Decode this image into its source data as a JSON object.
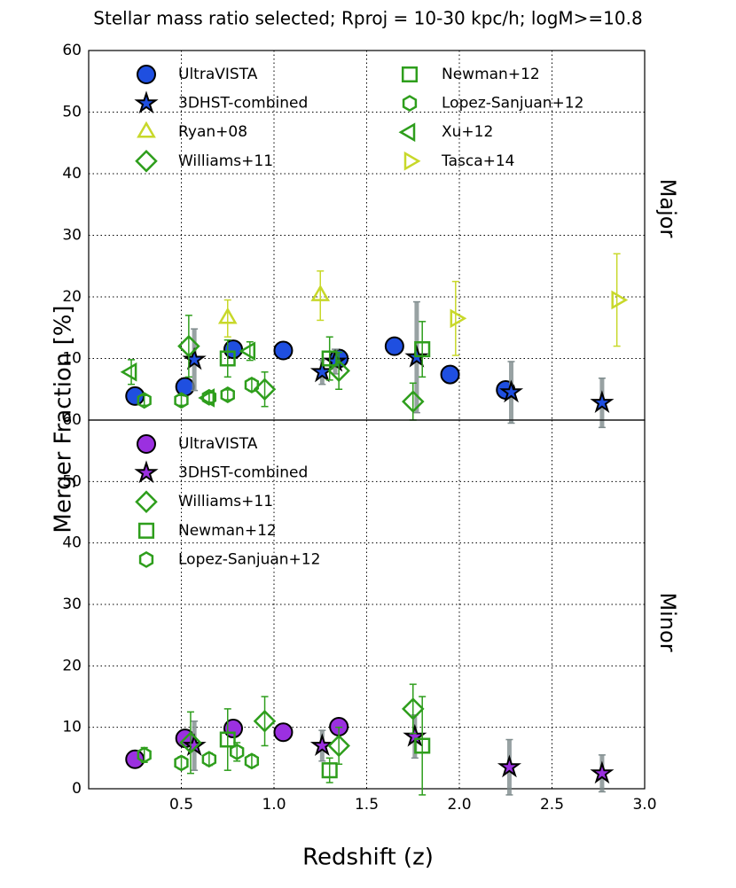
{
  "chart_data": [
    {
      "type": "scatter",
      "title": "Stellar mass ratio selected; Rproj = 10-30 kpc/h; logM>=10.8",
      "ylabel": "Merger Fraction [%]",
      "panel_label": "Major",
      "xlim": [
        0,
        3.0
      ],
      "xticks": [
        {
          "value": 0.5,
          "label": "0.5"
        },
        {
          "value": 1.0,
          "label": "1.0"
        },
        {
          "value": 1.5,
          "label": "1.5"
        },
        {
          "value": 2.0,
          "label": "2.0"
        },
        {
          "value": 2.5,
          "label": "2.5"
        },
        {
          "value": 3.0,
          "label": "3.0"
        }
      ],
      "ylim": [
        0,
        60
      ],
      "yticks": [
        10,
        20,
        30,
        40,
        50,
        60
      ],
      "grid": true,
      "legend_columns": 2,
      "series": [
        {
          "name": "UltraVISTA",
          "color": "#1f4fe0",
          "marker": "circle",
          "filled": true,
          "x": [
            0.25,
            0.52,
            0.78,
            1.05,
            1.35,
            1.65,
            1.95,
            2.25
          ],
          "values": [
            3.9,
            5.4,
            11.5,
            11.3,
            10.0,
            12.0,
            7.4,
            4.9
          ]
        },
        {
          "name": "3DHST-combined",
          "color": "#1f4fe0",
          "marker": "star",
          "filled": true,
          "x": [
            0.57,
            1.26,
            1.33,
            1.77,
            2.28,
            2.77
          ],
          "values": [
            9.8,
            7.8,
            9.5,
            10.2,
            4.5,
            2.8
          ],
          "yerr": [
            5.0,
            2.0,
            2.0,
            9.0,
            5.0,
            4.0
          ]
        },
        {
          "name": "Ryan+08",
          "color": "#c8d82a",
          "marker": "triangle-up",
          "filled": false,
          "x": [
            0.75,
            1.25
          ],
          "values": [
            16.5,
            20.2
          ],
          "yerr": [
            3.0,
            4.0
          ]
        },
        {
          "name": "Williams+11",
          "color": "#2e9e1c",
          "marker": "diamond",
          "filled": false,
          "x": [
            0.54,
            0.95,
            1.35,
            1.75
          ],
          "values": [
            12.0,
            5.0,
            8.0,
            3.0
          ],
          "yerr": [
            5.0,
            2.8,
            3.0,
            3.0
          ]
        },
        {
          "name": "Newman+12",
          "color": "#2e9e1c",
          "marker": "square",
          "filled": false,
          "x": [
            0.75,
            1.3,
            1.8
          ],
          "values": [
            10.0,
            10.0,
            11.5
          ],
          "yerr": [
            3.0,
            3.5,
            4.5
          ]
        },
        {
          "name": "Lopez-Sanjuan+12",
          "color": "#2e9e1c",
          "marker": "hexagon",
          "filled": false,
          "x": [
            0.3,
            0.5,
            0.65,
            0.75,
            0.88
          ],
          "values": [
            3.2,
            3.2,
            3.7,
            4.1,
            5.7
          ],
          "yerr": [
            0.8,
            0.8,
            0.8,
            0.8,
            1.0
          ]
        },
        {
          "name": "Xu+12",
          "color": "#2e9e1c",
          "marker": "triangle-left",
          "filled": false,
          "x": [
            0.23,
            0.65,
            0.87
          ],
          "values": [
            7.8,
            3.6,
            11.2
          ],
          "yerr": [
            2.0,
            0.8,
            1.5
          ]
        },
        {
          "name": "Tasca+14",
          "color": "#c8d82a",
          "marker": "triangle-right",
          "filled": false,
          "x": [
            1.98,
            2.85
          ],
          "values": [
            16.5,
            19.5
          ],
          "yerr": [
            6.0,
            7.5
          ]
        }
      ]
    },
    {
      "type": "scatter",
      "xlabel": "Redshift (z)",
      "panel_label": "Minor",
      "xlim": [
        0,
        3.0
      ],
      "ylim": [
        0,
        60
      ],
      "yticks": [
        0,
        10,
        20,
        30,
        40,
        50,
        60
      ],
      "grid": true,
      "legend_columns": 1,
      "series": [
        {
          "name": "UltraVISTA",
          "color": "#9b30e0",
          "marker": "circle",
          "filled": true,
          "x": [
            0.25,
            0.52,
            0.78,
            1.05,
            1.35
          ],
          "values": [
            4.8,
            8.2,
            9.8,
            9.2,
            10.1
          ]
        },
        {
          "name": "3DHST-combined",
          "color": "#9b30e0",
          "marker": "star",
          "filled": true,
          "x": [
            0.57,
            1.26,
            1.76,
            2.27,
            2.77
          ],
          "values": [
            7.0,
            7.0,
            8.5,
            3.5,
            2.5
          ],
          "yerr": [
            4.0,
            2.5,
            3.5,
            4.5,
            3.0
          ]
        },
        {
          "name": "Williams+11",
          "color": "#2e9e1c",
          "marker": "diamond",
          "filled": false,
          "x": [
            0.55,
            0.95,
            1.35,
            1.75
          ],
          "values": [
            7.5,
            11.0,
            7.0,
            13.0
          ],
          "yerr": [
            5.0,
            4.0,
            3.0,
            4.0
          ]
        },
        {
          "name": "Newman+12",
          "color": "#2e9e1c",
          "marker": "square",
          "filled": false,
          "x": [
            0.75,
            1.3,
            1.8
          ],
          "values": [
            8.0,
            3.0,
            7.0
          ],
          "yerr": [
            5.0,
            2.0,
            8.0
          ]
        },
        {
          "name": "Lopez-Sanjuan+12",
          "color": "#2e9e1c",
          "marker": "hexagon",
          "filled": false,
          "x": [
            0.3,
            0.5,
            0.65,
            0.8,
            0.88
          ],
          "values": [
            5.5,
            4.2,
            4.8,
            6.0,
            4.5
          ],
          "yerr": [
            1.2,
            1.0,
            1.0,
            1.5,
            1.0
          ]
        }
      ]
    }
  ]
}
